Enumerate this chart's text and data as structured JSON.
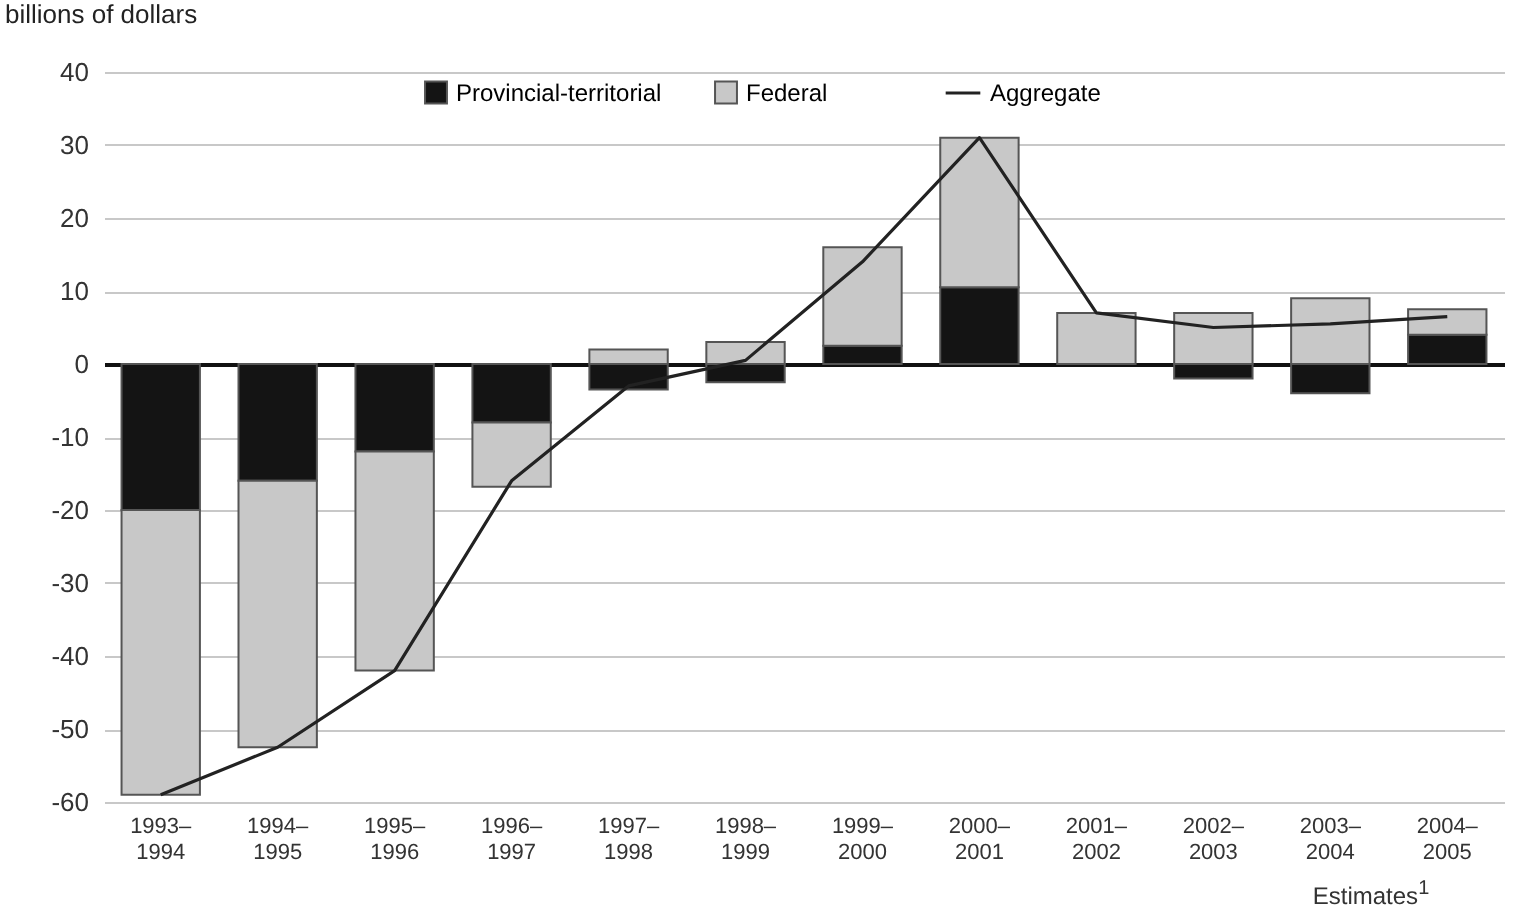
{
  "chart_data": {
    "type": "bar",
    "ylabel": "billions of dollars",
    "stacked": true,
    "categories": [
      "1993–1994",
      "1994–1995",
      "1995–1996",
      "1996–1997",
      "1997–1998",
      "1998–1999",
      "1999–2000",
      "2000–2001",
      "2001–2002",
      "2002–2003",
      "2003–2004",
      "2004–2005"
    ],
    "series": [
      {
        "name": "Provincial-territorial",
        "color": "#141414",
        "values": [
          -20,
          -16,
          -12,
          -8,
          -3.5,
          -2.5,
          2.5,
          10.5,
          0,
          -2,
          -4,
          4
        ]
      },
      {
        "name": "Federal",
        "color": "#c8c8c8",
        "values": [
          -39,
          -36.5,
          -30,
          -8.8,
          2,
          3,
          13.5,
          20.5,
          7,
          7,
          9,
          3.5
        ]
      },
      {
        "name": "Aggregate",
        "type": "line",
        "color": "#222222",
        "values": [
          -59,
          -52.5,
          -42,
          -16,
          -3,
          0.5,
          14,
          31,
          7,
          5,
          5.5,
          6.5
        ]
      }
    ],
    "ylim": [
      -60,
      40
    ],
    "yticks": [
      -60,
      -50,
      -40,
      -30,
      -20,
      -10,
      0,
      10,
      20,
      30,
      40
    ],
    "grid": "y",
    "legend": "top",
    "annotations": [
      "Estimates$^{1}$"
    ]
  }
}
